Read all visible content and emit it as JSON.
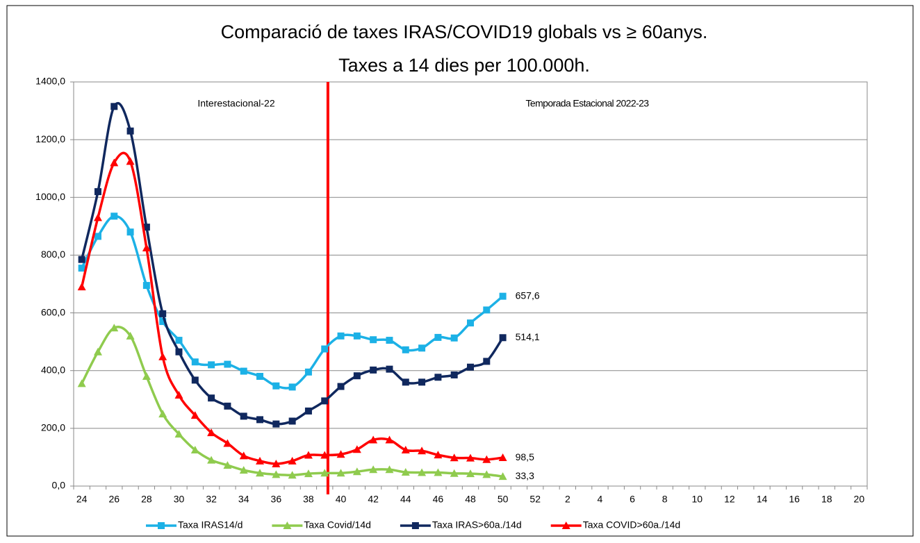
{
  "chart_data": {
    "type": "line",
    "title": "Comparació de taxes IRAS/COVID19 globals vs ≥ 60anys.",
    "subtitle": "Taxes a 14 dies per 100.000h.",
    "annotations": [
      "Interestacional-22",
      "Temporada Estacional 2022-23"
    ],
    "categories": [
      24,
      null,
      26,
      null,
      28,
      null,
      30,
      null,
      32,
      null,
      34,
      null,
      36,
      null,
      38,
      null,
      40,
      null,
      42,
      null,
      44,
      null,
      46,
      null,
      48,
      null,
      50,
      null,
      52,
      null,
      2,
      null,
      4,
      null,
      6,
      null,
      8,
      null,
      10,
      null,
      12,
      null,
      14,
      null,
      16,
      null,
      18,
      null,
      20
    ],
    "ylim": [
      0,
      1400
    ],
    "yticks": [
      {
        "value": 0,
        "label": "0,0"
      },
      {
        "value": 200,
        "label": "200,0"
      },
      {
        "value": 400,
        "label": "400,0"
      },
      {
        "value": 600,
        "label": "600,0"
      },
      {
        "value": 800,
        "label": "800,0"
      },
      {
        "value": 1000,
        "label": "1000,0"
      },
      {
        "value": 1200,
        "label": "1200,0"
      },
      {
        "value": 1400,
        "label": "1400,0"
      }
    ],
    "grid": true,
    "legend": "bottom",
    "series": [
      {
        "name": "Taxa IRAS14/d",
        "color": "#1cb1e6",
        "marker": "square",
        "values": [
          755,
          865,
          935,
          880,
          695,
          570,
          505,
          430,
          420,
          422,
          398,
          380,
          347,
          343,
          395,
          475,
          520,
          520,
          507,
          505,
          472,
          478,
          515,
          513,
          565,
          610,
          657.6,
          null,
          null,
          null,
          null,
          null,
          null,
          null,
          null,
          null,
          null,
          null,
          null,
          null,
          null,
          null,
          null,
          null,
          null,
          null,
          null,
          null,
          null
        ],
        "value_labels": [
          null,
          null,
          null,
          null,
          null,
          null,
          null,
          null,
          null,
          null,
          null,
          null,
          null,
          null,
          null,
          null,
          null,
          null,
          null,
          null,
          null,
          null,
          null,
          null,
          null,
          null,
          "657,6",
          null,
          null,
          null,
          null,
          null,
          null,
          null,
          null,
          null,
          null,
          null,
          null,
          null,
          null,
          null,
          null,
          null,
          null,
          null,
          null,
          null,
          null
        ]
      },
      {
        "name": "Taxa Covid/14d",
        "color": "#8fcb4e",
        "marker": "triangle",
        "values": [
          355,
          465,
          548,
          520,
          380,
          250,
          180,
          125,
          90,
          72,
          55,
          45,
          40,
          38,
          43,
          45,
          45,
          50,
          57,
          57,
          48,
          47,
          47,
          44,
          43,
          40,
          33.3,
          null,
          null,
          null,
          null,
          null,
          null,
          null,
          null,
          null,
          null,
          null,
          null,
          null,
          null,
          null,
          null,
          null,
          null,
          null,
          null,
          null,
          null
        ],
        "value_labels": [
          null,
          null,
          null,
          null,
          null,
          null,
          null,
          null,
          null,
          null,
          null,
          null,
          null,
          null,
          null,
          null,
          null,
          null,
          null,
          null,
          null,
          null,
          null,
          null,
          null,
          null,
          "33,3",
          null,
          null,
          null,
          null,
          null,
          null,
          null,
          null,
          null,
          null,
          null,
          null,
          null,
          null,
          null,
          null,
          null,
          null,
          null,
          null,
          null,
          null
        ]
      },
      {
        "name": "Taxa IRAS>60a./14d",
        "color": "#10285e",
        "marker": "square",
        "values": [
          785,
          1020,
          1315,
          1230,
          897,
          597,
          465,
          367,
          305,
          277,
          242,
          230,
          215,
          225,
          260,
          295,
          345,
          382,
          402,
          405,
          360,
          360,
          377,
          385,
          412,
          432,
          514.1,
          null,
          null,
          null,
          null,
          null,
          null,
          null,
          null,
          null,
          null,
          null,
          null,
          null,
          null,
          null,
          null,
          null,
          null,
          null,
          null,
          null,
          null
        ],
        "value_labels": [
          null,
          null,
          null,
          null,
          null,
          null,
          null,
          null,
          null,
          null,
          null,
          null,
          null,
          null,
          null,
          null,
          null,
          null,
          null,
          null,
          null,
          null,
          null,
          null,
          null,
          null,
          "514,1",
          null,
          null,
          null,
          null,
          null,
          null,
          null,
          null,
          null,
          null,
          null,
          null,
          null,
          null,
          null,
          null,
          null,
          null,
          null,
          null,
          null,
          null
        ]
      },
      {
        "name": "Taxa COVID>60a./14d",
        "color": "#ff0000",
        "marker": "triangle",
        "values": [
          690,
          930,
          1120,
          1125,
          825,
          448,
          315,
          245,
          185,
          148,
          105,
          87,
          77,
          87,
          107,
          107,
          110,
          127,
          160,
          160,
          125,
          122,
          108,
          98,
          97,
          92,
          98.5,
          null,
          null,
          null,
          null,
          null,
          null,
          null,
          null,
          null,
          null,
          null,
          null,
          null,
          null,
          null,
          null,
          null,
          null,
          null,
          null,
          null,
          null
        ],
        "value_labels": [
          null,
          null,
          null,
          null,
          null,
          null,
          null,
          null,
          null,
          null,
          null,
          null,
          null,
          null,
          null,
          null,
          null,
          null,
          null,
          null,
          null,
          null,
          null,
          null,
          null,
          null,
          "98,5",
          null,
          null,
          null,
          null,
          null,
          null,
          null,
          null,
          null,
          null,
          null,
          null,
          null,
          null,
          null,
          null,
          null,
          null,
          null,
          null,
          null,
          null
        ]
      }
    ]
  }
}
